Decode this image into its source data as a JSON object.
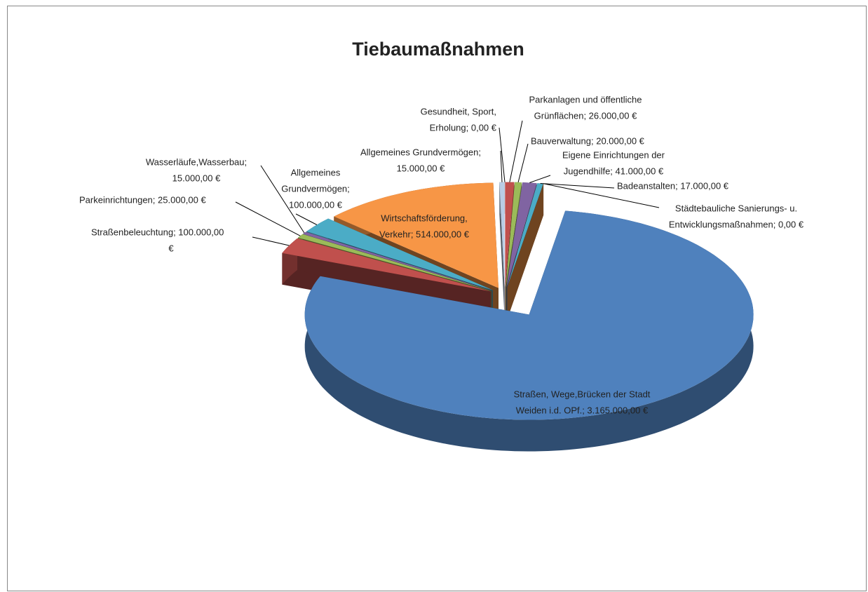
{
  "chart_data": {
    "type": "pie3d",
    "title": "Tiebaumaßnahmen",
    "values": [
      0,
      26000,
      20000,
      41000,
      17000,
      0,
      3165000,
      100000,
      25000,
      15000,
      100000,
      514000,
      15000
    ],
    "value_labels": [
      [
        "Gesundheit, Sport,",
        "Erholung; 0,00 €"
      ],
      [
        "Parkanlagen und öffentliche",
        "Grünflächen; 26.000,00 €"
      ],
      [
        "Bauverwaltung; 20.000,00 €"
      ],
      [
        "Eigene Einrichtungen der",
        "Jugendhilfe; 41.000,00 €"
      ],
      [
        "Badeanstalten; 17.000,00 €"
      ],
      [
        "Städtebauliche Sanierungs- u.",
        "Entwicklungsmaßnahmen; 0,00 €"
      ],
      [
        "Straßen, Wege,Brücken der Stadt",
        "Weiden i.d. OPf.; 3.165.000,00 €"
      ],
      [
        "Straßenbeleuchtung; 100.000,00",
        "€"
      ],
      [
        "Parkeinrichtungen; 25.000,00 €"
      ],
      [
        "Wasserläufe,Wasserbau;",
        "15.000,00 €"
      ],
      [
        "Allgemeines",
        "Grundvermögen;",
        "100.000,00 €"
      ],
      [
        "Wirtschaftsförderung,",
        "Verkehr; 514.000,00 €"
      ],
      [
        "Allgemeines Grundvermögen;",
        "15.000,00 €"
      ]
    ],
    "colors": [
      "#c0504d",
      "#c0504d",
      "#9bbb59",
      "#8064a2",
      "#4bacc6",
      "#f79646",
      "#4f81bd",
      "#c0504d",
      "#9bbb59",
      "#8064a2",
      "#4bacc6",
      "#f79646",
      "#b9cde5"
    ]
  }
}
